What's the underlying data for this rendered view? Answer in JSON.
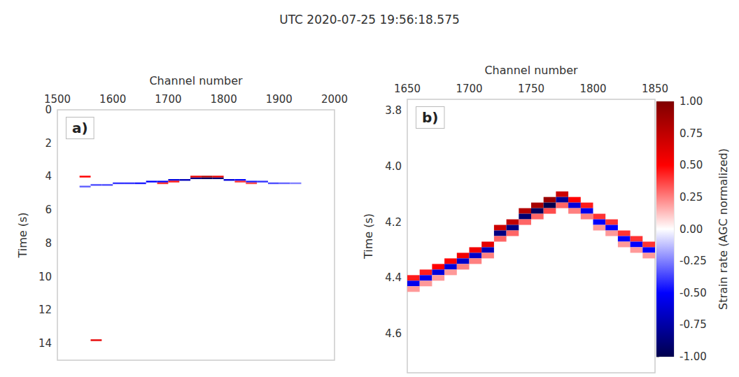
{
  "title": "UTC 2020-07-25 19:56:18.575",
  "colorbar": {
    "label": "Strain rate (AGC normalized)",
    "range": [
      -1,
      1
    ],
    "ticks": [
      {
        "value": -1,
        "label": "-1.00"
      },
      {
        "value": -0.75,
        "label": "-0.75"
      },
      {
        "value": -0.5,
        "label": "-0.50"
      },
      {
        "value": -0.25,
        "label": "-0.25"
      },
      {
        "value": 0,
        "label": "0.00"
      },
      {
        "value": 0.25,
        "label": "0.25"
      },
      {
        "value": 0.5,
        "label": "0.50"
      },
      {
        "value": 0.75,
        "label": "0.75"
      },
      {
        "value": 1,
        "label": "1.00"
      }
    ]
  },
  "chart_data": [
    {
      "type": "heatmap",
      "panel_label": "a)",
      "x_label": "Channel number",
      "y_label": "Time (s)",
      "xlim": [
        1500,
        2000
      ],
      "xticks": [
        1500,
        1600,
        1700,
        1800,
        1900,
        2000
      ],
      "ylim": [
        15,
        0
      ],
      "yticks": [
        0,
        2,
        4,
        6,
        8,
        10,
        12,
        14
      ],
      "grid": false,
      "cells": [
        [
          1550,
          4.6,
          -0.3
        ],
        [
          1570,
          4.5,
          -0.35
        ],
        [
          1590,
          4.5,
          -0.35
        ],
        [
          1610,
          4.4,
          -0.4
        ],
        [
          1630,
          4.4,
          -0.4
        ],
        [
          1650,
          4.4,
          -0.45
        ],
        [
          1670,
          4.3,
          -0.5
        ],
        [
          1690,
          4.3,
          -0.5
        ],
        [
          1710,
          4.2,
          -0.6
        ],
        [
          1730,
          4.2,
          -0.7
        ],
        [
          1750,
          4.1,
          -0.85
        ],
        [
          1770,
          4.1,
          -0.95
        ],
        [
          1790,
          4.1,
          -0.9
        ],
        [
          1810,
          4.2,
          -0.6
        ],
        [
          1830,
          4.2,
          -0.5
        ],
        [
          1850,
          4.3,
          -0.45
        ],
        [
          1870,
          4.3,
          -0.4
        ],
        [
          1890,
          4.4,
          -0.35
        ],
        [
          1910,
          4.4,
          -0.3
        ],
        [
          1930,
          4.4,
          -0.25
        ],
        [
          1750,
          4.0,
          0.6
        ],
        [
          1770,
          4.0,
          0.8
        ],
        [
          1790,
          4.0,
          0.6
        ],
        [
          1550,
          4.0,
          0.5
        ],
        [
          1570,
          13.8,
          0.6
        ],
        [
          1690,
          4.4,
          0.4
        ],
        [
          1710,
          4.3,
          0.45
        ],
        [
          1830,
          4.3,
          0.4
        ],
        [
          1850,
          4.4,
          0.35
        ]
      ]
    },
    {
      "type": "heatmap",
      "panel_label": "b)",
      "x_label": "Channel number",
      "y_label": "Time (s)",
      "xlim": [
        1650,
        1850
      ],
      "xticks": [
        1650,
        1700,
        1750,
        1800,
        1850
      ],
      "ylim": [
        4.74,
        3.76
      ],
      "yticks": [
        3.8,
        {
          "value": 4.0,
          "label": "4.0"
        },
        4.2,
        4.4,
        4.6
      ],
      "grid": false,
      "cells": [
        [
          1655,
          4.4,
          0.45
        ],
        [
          1655,
          4.42,
          -0.55
        ],
        [
          1655,
          4.44,
          0.2
        ],
        [
          1665,
          4.38,
          0.45
        ],
        [
          1665,
          4.4,
          -0.55
        ],
        [
          1665,
          4.42,
          0.2
        ],
        [
          1675,
          4.36,
          0.5
        ],
        [
          1675,
          4.38,
          -0.6
        ],
        [
          1675,
          4.4,
          0.2
        ],
        [
          1685,
          4.34,
          0.5
        ],
        [
          1685,
          4.36,
          -0.6
        ],
        [
          1685,
          4.38,
          0.2
        ],
        [
          1695,
          4.32,
          0.55
        ],
        [
          1695,
          4.34,
          -0.65
        ],
        [
          1695,
          4.36,
          0.25
        ],
        [
          1705,
          4.3,
          0.55
        ],
        [
          1705,
          4.32,
          -0.65
        ],
        [
          1705,
          4.34,
          0.25
        ],
        [
          1715,
          4.28,
          0.6
        ],
        [
          1715,
          4.3,
          -0.7
        ],
        [
          1715,
          4.32,
          0.25
        ],
        [
          1725,
          4.22,
          0.7
        ],
        [
          1725,
          4.24,
          -0.85
        ],
        [
          1725,
          4.26,
          0.3
        ],
        [
          1735,
          4.2,
          0.75
        ],
        [
          1735,
          4.22,
          -0.85
        ],
        [
          1735,
          4.24,
          0.3
        ],
        [
          1745,
          4.16,
          0.8
        ],
        [
          1745,
          4.18,
          -0.9
        ],
        [
          1745,
          4.2,
          0.3
        ],
        [
          1755,
          4.14,
          0.85
        ],
        [
          1755,
          4.16,
          -0.95
        ],
        [
          1755,
          4.18,
          0.3
        ],
        [
          1765,
          4.12,
          0.9
        ],
        [
          1765,
          4.14,
          -1.0
        ],
        [
          1765,
          4.16,
          0.35
        ],
        [
          1775,
          4.1,
          0.7
        ],
        [
          1775,
          4.12,
          -0.8
        ],
        [
          1775,
          4.14,
          0.3
        ],
        [
          1785,
          4.12,
          0.5
        ],
        [
          1785,
          4.14,
          -0.6
        ],
        [
          1785,
          4.16,
          0.25
        ],
        [
          1795,
          4.14,
          0.45
        ],
        [
          1795,
          4.16,
          -0.55
        ],
        [
          1795,
          4.18,
          0.25
        ],
        [
          1805,
          4.18,
          0.4
        ],
        [
          1805,
          4.2,
          -0.5
        ],
        [
          1805,
          4.22,
          0.2
        ],
        [
          1815,
          4.2,
          0.4
        ],
        [
          1815,
          4.22,
          -0.5
        ],
        [
          1815,
          4.24,
          0.2
        ],
        [
          1825,
          4.24,
          0.4
        ],
        [
          1825,
          4.26,
          -0.5
        ],
        [
          1825,
          4.28,
          0.2
        ],
        [
          1835,
          4.26,
          0.4
        ],
        [
          1835,
          4.28,
          -0.5
        ],
        [
          1835,
          4.3,
          0.2
        ],
        [
          1845,
          4.28,
          0.4
        ],
        [
          1845,
          4.3,
          -0.5
        ],
        [
          1845,
          4.32,
          0.2
        ]
      ]
    }
  ]
}
